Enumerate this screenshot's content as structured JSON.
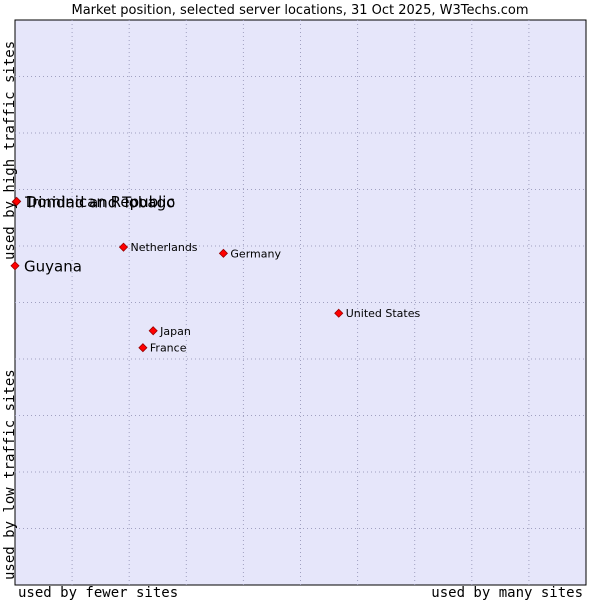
{
  "chart_data": {
    "type": "scatter",
    "title": "Market position, selected server locations, 31 Oct 2025, W3Techs.com",
    "xlabel_left": "used by fewer sites",
    "xlabel_right": "used by many sites",
    "ylabel_low": "used by low traffic sites",
    "ylabel_high": "used by high traffic sites",
    "xlim": [
      0,
      100
    ],
    "ylim": [
      0,
      100
    ],
    "grid": true,
    "points": [
      {
        "name": "Trinidad and Tobago",
        "x": 0.2,
        "y": 67.8,
        "label_size": "large"
      },
      {
        "name": "Dominican Republic",
        "x": 0.3,
        "y": 67.9,
        "label_size": "large"
      },
      {
        "name": "Guyana",
        "x": 0.0,
        "y": 56.5,
        "label_size": "large"
      },
      {
        "name": "Netherlands",
        "x": 19.0,
        "y": 59.8,
        "label_size": "small"
      },
      {
        "name": "Germany",
        "x": 36.5,
        "y": 58.7,
        "label_size": "small"
      },
      {
        "name": "United States",
        "x": 56.7,
        "y": 48.1,
        "label_size": "small"
      },
      {
        "name": "Japan",
        "x": 24.2,
        "y": 45.0,
        "label_size": "small"
      },
      {
        "name": "France",
        "x": 22.4,
        "y": 42.0,
        "label_size": "small"
      }
    ],
    "colors": {
      "plot_bg": "#e6e6fa",
      "marker": "#ff0000",
      "marker_edge": "#990000",
      "grid": "#a0a0c0",
      "axis": "#000000"
    }
  }
}
